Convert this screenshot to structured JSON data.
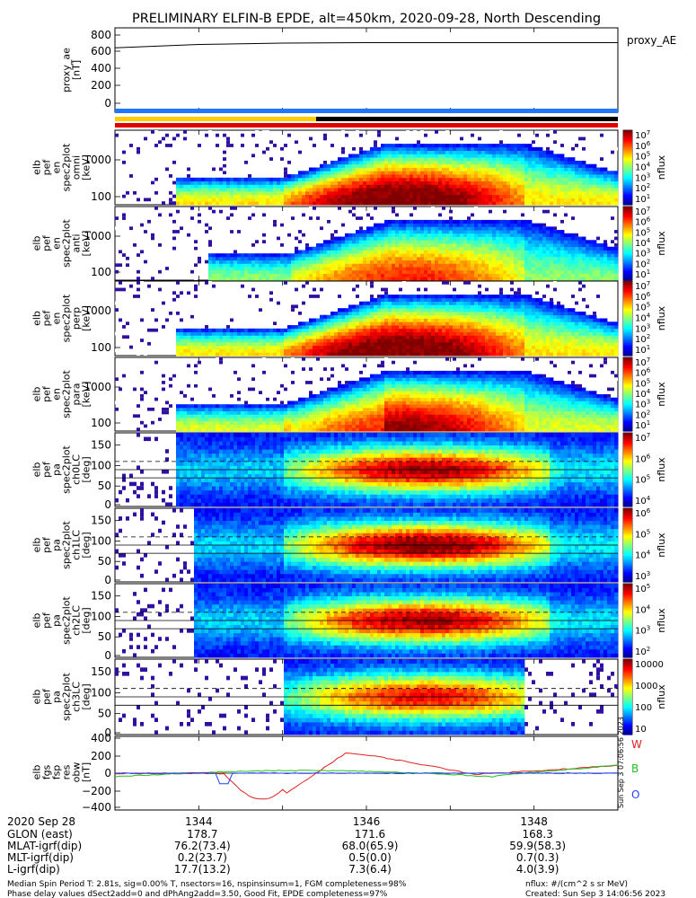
{
  "title": "PRELIMINARY ELFIN-B EPDE, alt=450km, 2020-09-28, North Descending",
  "colors": {
    "status_blue": "#1f77ff",
    "status_yellow": "#ffcc00",
    "status_red": "#e00000",
    "status_black": "#000000",
    "line_red": "#e02020",
    "line_green": "#20c020",
    "line_blue": "#2040ff"
  },
  "panels": {
    "proxy_ae": {
      "label_lines": [
        "proxy_ae",
        "[nT]"
      ],
      "legend": "proxy_AE",
      "yticks": [
        "800",
        "600",
        "400",
        "200",
        "0"
      ]
    },
    "spectra": [
      {
        "label_lines": [
          "elb",
          "pef",
          "en",
          "spec2plot",
          "omni",
          "[keV]"
        ],
        "yticks": [
          "1000",
          "100"
        ],
        "cbar_ticks": [
          "10^7",
          "10^6",
          "10^5",
          "10^4",
          "10^3",
          "10^2",
          "10^1"
        ],
        "cbar_label": "nflux"
      },
      {
        "label_lines": [
          "elb",
          "pef",
          "en",
          "spec2plot",
          "anti",
          "[keV]"
        ],
        "yticks": [
          "1000",
          "100"
        ],
        "cbar_ticks": [
          "10^7",
          "10^6",
          "10^5",
          "10^4",
          "10^3",
          "10^2",
          "10^1"
        ],
        "cbar_label": "nflux"
      },
      {
        "label_lines": [
          "elb",
          "pef",
          "en",
          "spec2plot",
          "perp",
          "[keV]"
        ],
        "yticks": [
          "1000",
          "100"
        ],
        "cbar_ticks": [
          "10^7",
          "10^6",
          "10^5",
          "10^4",
          "10^3",
          "10^2",
          "10^1"
        ],
        "cbar_label": "nflux"
      },
      {
        "label_lines": [
          "elb",
          "pef",
          "en",
          "spec2plot",
          "para",
          "[keV]"
        ],
        "yticks": [
          "1000",
          "100"
        ],
        "cbar_ticks": [
          "10^7",
          "10^6",
          "10^5",
          "10^4",
          "10^3",
          "10^2",
          "10^1"
        ],
        "cbar_label": "nflux"
      }
    ],
    "pitch": [
      {
        "label_lines": [
          "elb",
          "pef",
          "pa",
          "spec2plot",
          "ch0LC",
          "[deg]"
        ],
        "yticks": [
          "150",
          "100",
          "50",
          "0"
        ],
        "cbar_ticks": [
          "10^7",
          "10^6",
          "10^5",
          "10^4"
        ],
        "cbar_label": "nflux"
      },
      {
        "label_lines": [
          "elb",
          "pef",
          "pa",
          "spec2plot",
          "ch1LC",
          "[deg]"
        ],
        "yticks": [
          "150",
          "100",
          "50",
          "0"
        ],
        "cbar_ticks": [
          "10^6",
          "10^5",
          "10^4",
          "10^3"
        ],
        "cbar_label": "nflux"
      },
      {
        "label_lines": [
          "elb",
          "pef",
          "pa",
          "spec2plot",
          "ch2LC",
          "[deg]"
        ],
        "yticks": [
          "150",
          "100",
          "50",
          "0"
        ],
        "cbar_ticks": [
          "10^5",
          "10^4",
          "10^3",
          "10^2"
        ],
        "cbar_label": "nflux"
      },
      {
        "label_lines": [
          "elb",
          "pef",
          "pa",
          "spec2plot",
          "ch3LC",
          "[deg]"
        ],
        "yticks": [
          "150",
          "100",
          "50",
          "0"
        ],
        "cbar_ticks": [
          "10000",
          "1000",
          "100",
          "10"
        ],
        "cbar_label": "nflux"
      }
    ],
    "field": {
      "label_lines": [
        "elb",
        "fgs",
        "fsp",
        "res",
        "obw",
        "[nT]"
      ],
      "yticks": [
        "400",
        "200",
        "0",
        "−200",
        "−400"
      ],
      "legend": [
        "W",
        "B",
        "O"
      ]
    }
  },
  "side_note": "Sun Sep  3 07:06:56 2023",
  "footer": {
    "rows": [
      {
        "label": "2020 Sep 28",
        "values": [
          "1344",
          "1346",
          "1348"
        ]
      },
      {
        "label": "GLON (east)",
        "values": [
          "178.7",
          "171.6",
          "168.3"
        ]
      },
      {
        "label": "MLAT-igrf(dip)",
        "values": [
          "76.2(73.4)",
          "68.0(65.9)",
          "59.9(58.3)"
        ]
      },
      {
        "label": "MLT-igrf(dip)",
        "values": [
          "0.2(23.7)",
          "0.5(0.0)",
          "0.7(0.3)"
        ]
      },
      {
        "label": "L-igrf(dip)",
        "values": [
          "17.7(13.2)",
          "7.3(6.4)",
          "4.0(3.9)"
        ]
      }
    ],
    "note1": "Median Spin Period T: 2.81s, sig=0.00% T, nsectors=16, nspinsinsum=1, FGM completeness=98%",
    "note2": "Phase delay values dSect2add=0 and dPhAng2add=3.50, Good Fit, EPDE completeness=97%",
    "units": "nflux: #/(cm^2 s sr MeV)",
    "created": "Created: Sun Sep  3 14:06:56 2023"
  },
  "chart_data": {
    "type": "heatmap",
    "title": "PRELIMINARY ELFIN-B EPDE, alt=450km, 2020-09-28, North Descending",
    "x": [
      "1344",
      "1346",
      "1348"
    ],
    "ae_series": {
      "name": "proxy_AE",
      "range": [
        0,
        800
      ],
      "values_approx": [
        650,
        690,
        705,
        710,
        710,
        710,
        710
      ]
    },
    "field_range": [
      -400,
      400
    ],
    "field_series_names": [
      "W",
      "B",
      "O"
    ]
  }
}
